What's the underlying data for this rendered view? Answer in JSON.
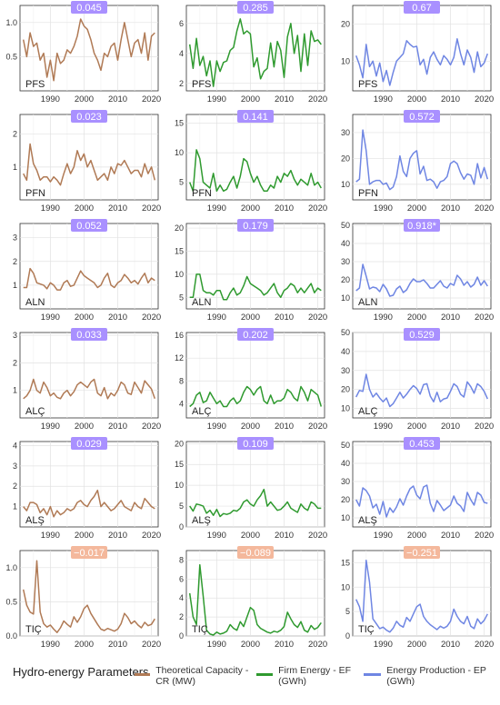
{
  "colors": {
    "CR": "#b07a55",
    "EF": "#2f9a2f",
    "EP": "#6f86e3",
    "badge_positive": "#a990ff",
    "badge_negative": "#f4b89c"
  },
  "x_ticks": [
    "1990",
    "2000",
    "2010",
    "2020"
  ],
  "rows": [
    "PFS",
    "PFN",
    "ALN",
    "ALÇ",
    "ALŞ",
    "TIÇ"
  ],
  "legend": {
    "title": "Hydro-energy Parameters",
    "items": [
      {
        "key": "CR",
        "label": "Theoretical Capacity - CR (MW)"
      },
      {
        "key": "EF",
        "label": "Firm Energy - EF (GWh)"
      },
      {
        "key": "EP",
        "label": "Energy Production - EP (GWh)"
      }
    ]
  },
  "chart_data": [
    {
      "type": "line",
      "station": "PFS",
      "parameter": "CR",
      "badge": "0.045",
      "badge_sign": "positive",
      "x_start": 1982,
      "ylim": [
        0.0,
        1.25
      ],
      "yticks": [
        "0.5",
        "1.0",
        "1.5"
      ],
      "values": [
        0.75,
        0.5,
        0.85,
        0.65,
        0.7,
        0.45,
        0.55,
        0.2,
        0.45,
        0.15,
        0.55,
        0.4,
        0.45,
        0.6,
        0.55,
        0.65,
        0.8,
        1.05,
        0.95,
        0.9,
        0.75,
        0.55,
        0.45,
        0.3,
        0.55,
        0.5,
        0.65,
        0.7,
        0.45,
        0.75,
        1.0,
        0.75,
        0.5,
        0.7,
        0.75,
        0.55,
        0.85,
        0.45,
        0.8,
        0.85
      ]
    },
    {
      "type": "line",
      "station": "PFS",
      "parameter": "EF",
      "badge": "0.285",
      "badge_sign": "positive",
      "x_start": 1982,
      "ylim": [
        1.5,
        7.2
      ],
      "yticks": [
        "2",
        "4",
        "6"
      ],
      "values": [
        4.6,
        3.0,
        5.0,
        3.2,
        3.8,
        2.5,
        3.5,
        1.8,
        3.5,
        2.8,
        3.4,
        3.5,
        4.2,
        4.4,
        5.5,
        6.3,
        5.3,
        5.5,
        5.3,
        3.1,
        3.7,
        2.3,
        2.8,
        3.0,
        4.7,
        3.1,
        4.8,
        4.2,
        2.4,
        5.1,
        6.0,
        4.0,
        5.2,
        2.8,
        5.3,
        3.2,
        5.5,
        4.8,
        4.9,
        4.6
      ]
    },
    {
      "type": "line",
      "station": "PFS",
      "parameter": "EP",
      "badge": "0.67",
      "badge_sign": "positive",
      "x_start": 1982,
      "ylim": [
        2.0,
        25.0
      ],
      "yticks": [
        "10",
        "20"
      ],
      "values": [
        11.5,
        9.0,
        5.5,
        14.5,
        8.5,
        10.0,
        6.0,
        9.5,
        4.5,
        7.5,
        3.5,
        7.0,
        10.0,
        11.0,
        12.0,
        15.5,
        14.5,
        13.8,
        14.0,
        9.0,
        10.5,
        6.5,
        11.0,
        12.5,
        10.5,
        9.0,
        11.5,
        10.5,
        9.0,
        11.0,
        16.0,
        12.0,
        9.0,
        13.0,
        11.0,
        7.0,
        12.5,
        8.5,
        9.5,
        12.0
      ]
    },
    {
      "type": "line",
      "station": "PFN",
      "parameter": "CR",
      "badge": "0.023",
      "badge_sign": "positive",
      "x_start": 1982,
      "ylim": [
        0.0,
        2.6
      ],
      "yticks": [
        "1",
        "2"
      ],
      "values": [
        0.8,
        0.6,
        1.7,
        1.1,
        0.9,
        0.6,
        0.7,
        0.7,
        0.55,
        0.7,
        0.6,
        0.45,
        0.8,
        1.1,
        0.8,
        1.0,
        1.5,
        1.2,
        1.4,
        1.0,
        1.2,
        0.9,
        0.6,
        0.7,
        0.8,
        0.6,
        1.0,
        0.8,
        1.1,
        1.05,
        1.2,
        1.0,
        0.8,
        0.9,
        0.9,
        0.7,
        1.1,
        0.8,
        1.0,
        0.6
      ]
    },
    {
      "type": "line",
      "station": "PFN",
      "parameter": "EF",
      "badge": "0.141",
      "badge_sign": "positive",
      "x_start": 1982,
      "ylim": [
        2.0,
        16.5
      ],
      "yticks": [
        "5",
        "10",
        "15"
      ],
      "values": [
        5.0,
        3.5,
        10.5,
        9.0,
        5.0,
        4.5,
        4.0,
        6.5,
        3.5,
        4.5,
        3.5,
        3.8,
        5.0,
        6.0,
        4.0,
        6.0,
        9.0,
        8.5,
        6.5,
        5.0,
        6.0,
        4.5,
        3.5,
        3.5,
        4.5,
        4.0,
        6.0,
        5.0,
        6.5,
        6.0,
        7.0,
        5.5,
        4.5,
        5.5,
        5.0,
        4.5,
        6.5,
        4.5,
        5.0,
        4.0
      ]
    },
    {
      "type": "line",
      "station": "PFN",
      "parameter": "EP",
      "badge": "0.572",
      "badge_sign": "positive",
      "x_start": 1982,
      "ylim": [
        4.0,
        37.0
      ],
      "yticks": [
        "10",
        "20",
        "30"
      ],
      "values": [
        11.0,
        12.0,
        31.0,
        23.0,
        10.0,
        11.0,
        11.5,
        11.5,
        10.0,
        10.5,
        8.0,
        9.0,
        13.0,
        21.0,
        15.0,
        13.0,
        20.0,
        22.0,
        23.0,
        14.0,
        17.0,
        11.5,
        12.0,
        11.0,
        8.5,
        11.0,
        11.5,
        13.0,
        18.0,
        19.0,
        18.0,
        14.5,
        12.0,
        14.0,
        13.5,
        10.0,
        18.0,
        12.5,
        16.5,
        12.0
      ]
    },
    {
      "type": "line",
      "station": "ALN",
      "parameter": "CR",
      "badge": "0.052",
      "badge_sign": "positive",
      "x_start": 1982,
      "ylim": [
        0.0,
        3.6
      ],
      "yticks": [
        "1",
        "2",
        "3"
      ],
      "values": [
        0.9,
        0.9,
        1.7,
        1.5,
        1.1,
        1.05,
        1.0,
        0.85,
        1.1,
        1.0,
        0.8,
        0.8,
        1.1,
        1.2,
        0.95,
        1.0,
        1.3,
        1.6,
        1.4,
        1.3,
        1.2,
        1.1,
        0.9,
        1.0,
        1.3,
        1.5,
        1.0,
        0.9,
        1.1,
        1.2,
        1.45,
        1.3,
        1.1,
        1.2,
        1.05,
        1.3,
        1.5,
        1.1,
        1.3,
        1.2
      ]
    },
    {
      "type": "line",
      "station": "ALN",
      "parameter": "EF",
      "badge": "0.179",
      "badge_sign": "positive",
      "x_start": 1982,
      "ylim": [
        2.5,
        21.0
      ],
      "yticks": [
        "5",
        "10",
        "15",
        "20"
      ],
      "values": [
        5.0,
        5.0,
        10.0,
        10.0,
        6.5,
        6.0,
        6.0,
        5.5,
        6.5,
        6.5,
        4.5,
        4.5,
        6.0,
        7.0,
        5.5,
        6.0,
        7.5,
        9.5,
        8.0,
        7.5,
        7.0,
        6.5,
        5.5,
        6.0,
        7.0,
        8.0,
        6.0,
        5.0,
        6.5,
        7.0,
        8.0,
        7.5,
        6.0,
        7.0,
        6.0,
        7.0,
        8.0,
        6.0,
        7.0,
        6.5
      ]
    },
    {
      "type": "line",
      "station": "ALN",
      "parameter": "EP",
      "badge": "0.918*",
      "badge_sign": "positive",
      "x_start": 1982,
      "ylim": [
        4.0,
        51.0
      ],
      "yticks": [
        "10",
        "20",
        "30",
        "40",
        "50"
      ],
      "values": [
        14.0,
        15.5,
        28.5,
        22.0,
        15.0,
        16.0,
        15.5,
        13.5,
        17.5,
        15.0,
        11.0,
        11.5,
        15.0,
        16.5,
        13.0,
        14.5,
        18.0,
        20.5,
        19.0,
        19.0,
        20.0,
        18.0,
        15.5,
        15.5,
        17.5,
        19.5,
        16.5,
        15.5,
        18.0,
        17.0,
        22.5,
        20.5,
        17.0,
        19.0,
        16.0,
        17.5,
        21.5,
        17.0,
        19.5,
        16.5
      ]
    },
    {
      "type": "line",
      "station": "ALÇ",
      "parameter": "CR",
      "badge": "0.033",
      "badge_sign": "positive",
      "x_start": 1982,
      "ylim": [
        0.0,
        3.1
      ],
      "yticks": [
        "1",
        "2",
        "3"
      ],
      "values": [
        0.7,
        0.8,
        1.0,
        1.4,
        1.0,
        0.9,
        1.3,
        1.1,
        0.8,
        0.9,
        0.75,
        0.7,
        0.9,
        1.0,
        0.8,
        0.95,
        1.2,
        1.3,
        1.2,
        1.1,
        1.3,
        1.4,
        0.9,
        0.8,
        1.1,
        0.7,
        0.9,
        0.8,
        1.0,
        1.3,
        1.2,
        0.9,
        0.85,
        1.3,
        1.1,
        0.9,
        1.35,
        1.2,
        1.05,
        0.7
      ]
    },
    {
      "type": "line",
      "station": "ALÇ",
      "parameter": "EF",
      "badge": "0.202",
      "badge_sign": "positive",
      "x_start": 1982,
      "ylim": [
        1.5,
        16.5
      ],
      "yticks": [
        "4",
        "8",
        "12",
        "16"
      ],
      "values": [
        3.5,
        4.0,
        5.5,
        6.0,
        4.2,
        4.5,
        6.0,
        5.0,
        4.0,
        4.5,
        3.5,
        3.5,
        4.5,
        5.0,
        4.0,
        4.5,
        6.0,
        7.0,
        6.5,
        5.5,
        6.5,
        7.0,
        4.5,
        4.0,
        5.5,
        4.0,
        4.5,
        4.5,
        5.0,
        6.5,
        6.0,
        5.0,
        4.5,
        7.0,
        6.0,
        4.5,
        6.5,
        6.0,
        5.5,
        3.5
      ]
    },
    {
      "type": "line",
      "station": "ALÇ",
      "parameter": "EP",
      "badge": "0.529",
      "badge_sign": "positive",
      "x_start": 1982,
      "ylim": [
        5.0,
        50.0
      ],
      "yticks": [
        "10",
        "20",
        "30",
        "40",
        "50"
      ],
      "values": [
        16.0,
        19.5,
        19.0,
        28.0,
        20.0,
        16.0,
        18.0,
        15.5,
        13.5,
        15.5,
        11.0,
        12.5,
        15.5,
        18.5,
        15.5,
        17.5,
        20.0,
        22.0,
        20.5,
        17.5,
        22.5,
        23.0,
        16.5,
        13.5,
        18.5,
        13.5,
        15.0,
        15.5,
        19.0,
        23.0,
        21.5,
        17.5,
        16.0,
        24.0,
        21.5,
        18.0,
        23.0,
        21.5,
        19.0,
        15.0
      ]
    },
    {
      "type": "line",
      "station": "ALŞ",
      "parameter": "CR",
      "badge": "0.029",
      "badge_sign": "positive",
      "x_start": 1982,
      "ylim": [
        0.0,
        4.2
      ],
      "yticks": [
        "1",
        "2",
        "3",
        "4"
      ],
      "values": [
        1.0,
        0.8,
        1.2,
        1.2,
        1.1,
        0.7,
        0.9,
        0.6,
        1.0,
        0.5,
        0.8,
        0.6,
        0.7,
        0.9,
        0.8,
        0.9,
        1.2,
        1.3,
        1.1,
        1.0,
        1.3,
        1.5,
        1.8,
        1.0,
        1.2,
        1.0,
        0.8,
        0.9,
        1.1,
        1.3,
        1.0,
        0.9,
        0.8,
        1.2,
        1.0,
        0.9,
        1.4,
        1.2,
        1.0,
        0.9
      ]
    },
    {
      "type": "line",
      "station": "ALŞ",
      "parameter": "EF",
      "badge": "0.109",
      "badge_sign": "positive",
      "x_start": 1982,
      "ylim": [
        0.0,
        20.5
      ],
      "yticks": [
        "0",
        "5",
        "10",
        "15",
        "20"
      ],
      "values": [
        5.0,
        3.8,
        5.5,
        5.3,
        5.0,
        3.3,
        4.0,
        2.8,
        4.2,
        2.5,
        3.2,
        3.0,
        3.3,
        4.0,
        3.8,
        4.5,
        6.0,
        6.5,
        5.5,
        5.0,
        6.5,
        7.5,
        9.0,
        5.0,
        6.0,
        5.0,
        4.0,
        4.2,
        5.0,
        6.0,
        4.5,
        4.0,
        3.5,
        5.5,
        4.5,
        4.0,
        6.0,
        5.5,
        4.5,
        4.5
      ]
    },
    {
      "type": "line",
      "station": "ALŞ",
      "parameter": "EP",
      "badge": "0.453",
      "badge_sign": "positive",
      "x_start": 1982,
      "ylim": [
        5.0,
        52.0
      ],
      "yticks": [
        "10",
        "20",
        "30",
        "40",
        "50"
      ],
      "values": [
        20.0,
        16.5,
        26.5,
        25.0,
        22.0,
        15.5,
        17.5,
        12.0,
        19.0,
        10.5,
        15.5,
        13.0,
        16.0,
        20.5,
        17.0,
        22.0,
        26.0,
        27.5,
        22.5,
        20.5,
        27.0,
        28.0,
        18.0,
        13.5,
        19.5,
        17.0,
        14.0,
        15.5,
        17.0,
        22.0,
        18.0,
        16.5,
        13.5,
        24.0,
        20.0,
        17.0,
        24.0,
        22.5,
        18.5,
        18.0
      ]
    },
    {
      "type": "line",
      "station": "TIÇ",
      "parameter": "CR",
      "badge": "−0.017",
      "badge_sign": "negative",
      "x_start": 1982,
      "ylim": [
        0.0,
        1.25
      ],
      "yticks": [
        "0.0",
        "0.5",
        "1.0"
      ],
      "values": [
        0.68,
        0.45,
        0.35,
        0.32,
        1.1,
        0.35,
        0.18,
        0.13,
        0.16,
        0.1,
        0.05,
        0.12,
        0.22,
        0.17,
        0.13,
        0.28,
        0.2,
        0.28,
        0.4,
        0.45,
        0.33,
        0.25,
        0.17,
        0.1,
        0.08,
        0.11,
        0.09,
        0.07,
        0.1,
        0.18,
        0.33,
        0.27,
        0.18,
        0.22,
        0.16,
        0.12,
        0.2,
        0.15,
        0.17,
        0.25
      ]
    },
    {
      "type": "line",
      "station": "TIÇ",
      "parameter": "EF",
      "badge": "−0.089",
      "badge_sign": "negative",
      "x_start": 1982,
      "ylim": [
        0.0,
        9.0
      ],
      "yticks": [
        "0",
        "2",
        "4",
        "6",
        "8"
      ],
      "values": [
        4.5,
        2.0,
        1.2,
        7.5,
        4.2,
        0.6,
        0.2,
        0.1,
        0.4,
        0.2,
        0.3,
        0.5,
        1.2,
        0.8,
        0.6,
        1.5,
        1.0,
        2.0,
        3.0,
        2.7,
        1.2,
        0.8,
        0.6,
        0.4,
        0.3,
        0.5,
        0.4,
        0.6,
        1.0,
        2.5,
        1.8,
        1.2,
        0.9,
        1.5,
        0.6,
        0.4,
        1.1,
        0.7,
        0.9,
        1.4
      ]
    },
    {
      "type": "line",
      "station": "TIÇ",
      "parameter": "EP",
      "badge": "−0.251",
      "badge_sign": "negative",
      "x_start": 1982,
      "ylim": [
        0.0,
        17.5
      ],
      "yticks": [
        "0",
        "5",
        "10",
        "15"
      ],
      "values": [
        7.5,
        6.0,
        3.0,
        15.5,
        11.0,
        3.5,
        2.5,
        1.5,
        1.8,
        1.2,
        0.8,
        1.6,
        3.0,
        2.2,
        1.8,
        3.8,
        3.0,
        4.5,
        6.0,
        6.5,
        4.0,
        3.0,
        2.3,
        1.8,
        1.3,
        2.0,
        1.6,
        2.0,
        3.0,
        5.5,
        4.0,
        3.0,
        2.5,
        4.0,
        2.0,
        1.5,
        3.5,
        2.5,
        3.2,
        4.5
      ]
    }
  ]
}
